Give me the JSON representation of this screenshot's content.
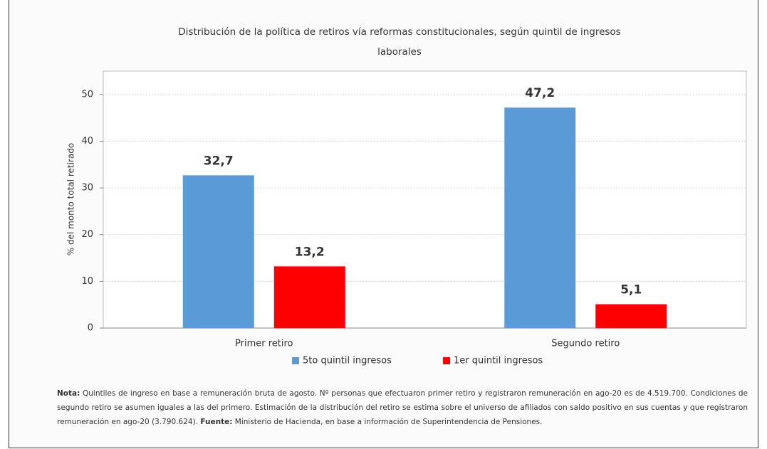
{
  "chart_data": {
    "type": "bar",
    "title": "Distribución de la política de retiros vía reformas constitucionales, según quintil de ingresos laborales",
    "ylabel": "% del monto total retirado",
    "categories": [
      "Primer retiro",
      "Segundo retiro"
    ],
    "series": [
      {
        "name": "5to quintil ingresos",
        "color": "#5b9bd5",
        "values": [
          32.7,
          47.2
        ],
        "value_labels": [
          "32,7",
          "47,2"
        ]
      },
      {
        "name": "1er quintil ingresos",
        "color": "#ff0000",
        "values": [
          13.2,
          5.1
        ],
        "value_labels": [
          "13,2",
          "5,1"
        ]
      }
    ],
    "ylim": [
      0,
      55
    ],
    "yticks": [
      0,
      10,
      20,
      30,
      40,
      50
    ],
    "grid": true,
    "legend": "bottom"
  },
  "note": {
    "label": "Nota:",
    "text": "Quintiles de ingreso en base a remuneración bruta de agosto. Nº personas que efectuaron primer retiro y registraron remuneración en ago-20 es de 4.519.700. Condiciones de segundo retiro se asumen iguales a las del primero. Estimación de la distribución del retiro se estima sobre el universo de afiliados con saldo positivo en sus cuentas y que registraron remuneración en ago-20 (3.790.624).",
    "source_label": "Fuente:",
    "source": "Ministerio de Hacienda, en base a información de Superintendencia de Pensiones."
  }
}
